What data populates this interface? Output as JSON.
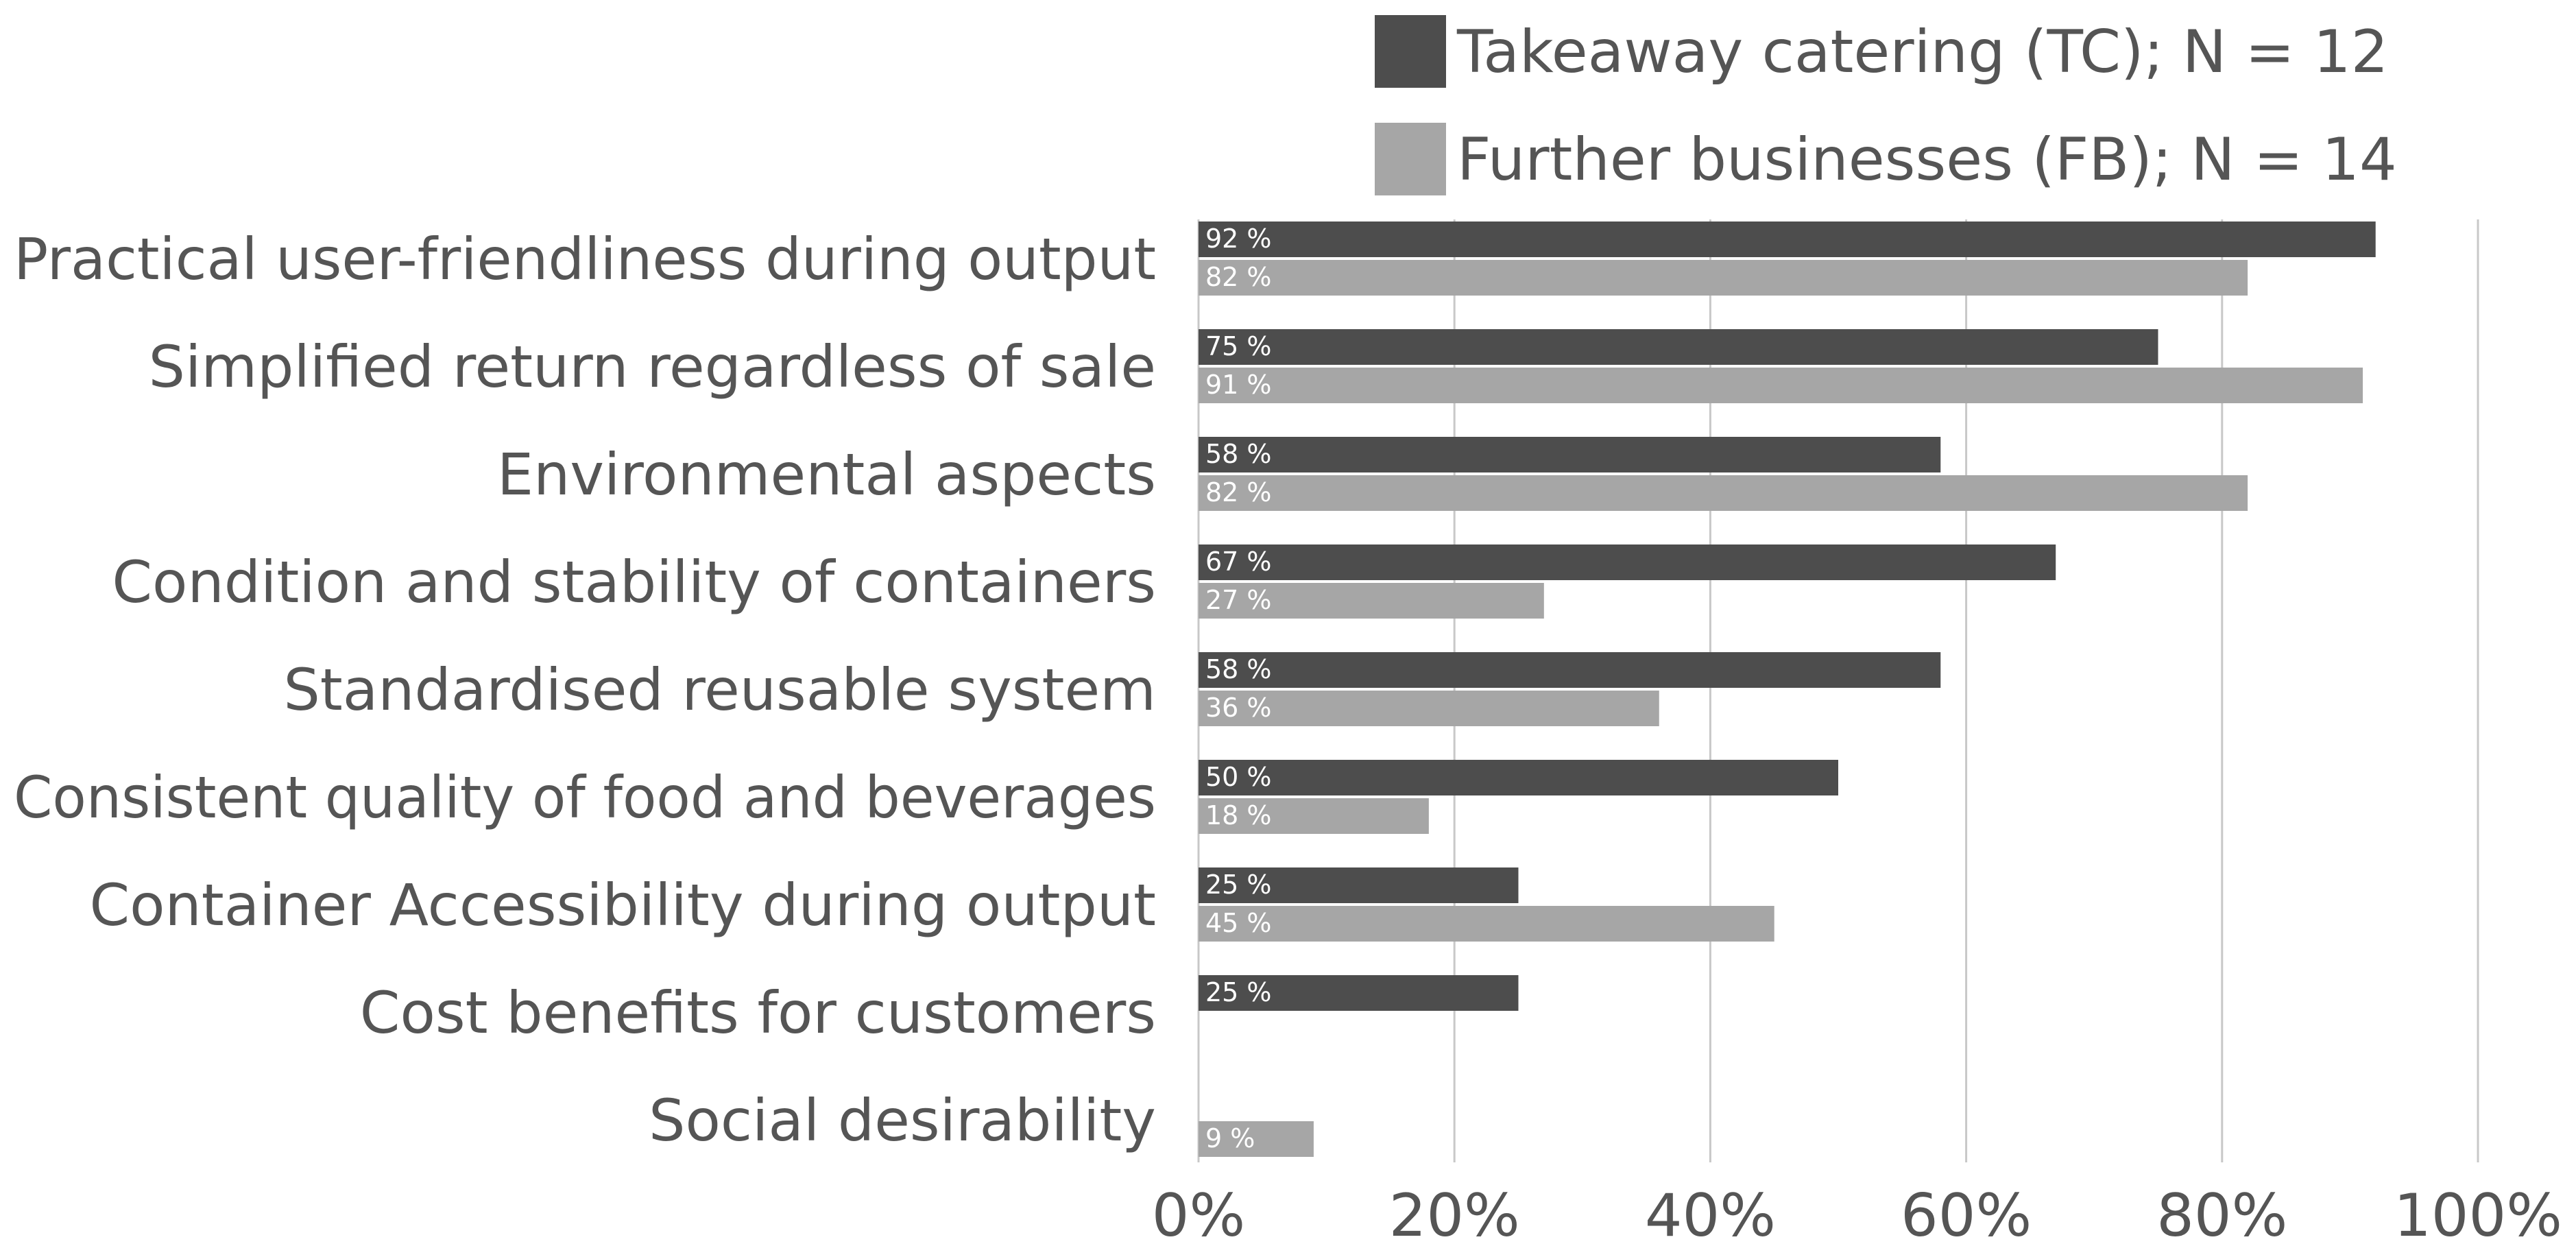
{
  "chart_data": {
    "type": "bar",
    "orientation": "horizontal",
    "categories": [
      "Practical user-friendliness during output",
      "Simplified return regardless of sale",
      "Environmental aspects",
      "Condition and stability of containers",
      "Standardised reusable system",
      "Consistent quality of food and beverages",
      "Container Accessibility during output",
      "Cost benefits for customers",
      "Social desirability"
    ],
    "series": [
      {
        "name": "Takeaway catering (TC); N = 12",
        "color": "#4d4d4d",
        "values": [
          92,
          75,
          58,
          67,
          58,
          50,
          25,
          25,
          null
        ],
        "labels": [
          "92 %",
          "75 %",
          "58 %",
          "67 %",
          "58 %",
          "50 %",
          "25 %",
          "25 %",
          null
        ]
      },
      {
        "name": "Further businesses (FB); N = 14",
        "color": "#a6a6a6",
        "values": [
          82,
          91,
          82,
          27,
          36,
          18,
          45,
          null,
          9
        ],
        "labels": [
          "82 %",
          "91 %",
          "82 %",
          "27 %",
          "36 %",
          "18 %",
          "45 %",
          null,
          "9 %"
        ]
      }
    ],
    "x_ticks": [
      "0%",
      "20%",
      "40%",
      "60%",
      "80%",
      "100%"
    ],
    "xlim": [
      0,
      100
    ],
    "grid": true,
    "legend_position": "top",
    "title": "",
    "xlabel": "",
    "ylabel": ""
  }
}
